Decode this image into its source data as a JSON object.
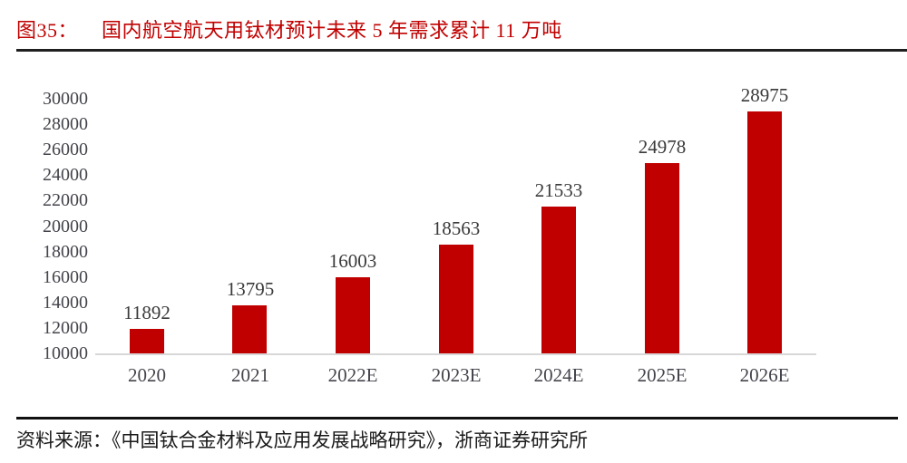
{
  "figure": {
    "label": "图35：",
    "title": "国内航空航天用钛材预计未来 5 年需求累计 11 万吨"
  },
  "source_note": "资料来源：《中国钛合金材料及应用发展战略研究》，浙商证券研究所",
  "colors": {
    "accent_red": "#c00000",
    "bar": "#c00000",
    "axis_text": "#44444c",
    "value_text": "#3a3a3a",
    "baseline": "#d8d8d8",
    "rule_dark": "#1f1f1f"
  },
  "chart_data": {
    "type": "bar",
    "title": "国内航空航天用钛材预计未来 5 年需求累计 11 万吨",
    "categories": [
      "2020",
      "2021",
      "2022E",
      "2023E",
      "2024E",
      "2025E",
      "2026E"
    ],
    "values": [
      11892,
      13795,
      16003,
      18563,
      21533,
      24978,
      28975
    ],
    "xlabel": "",
    "ylabel": "",
    "ylim": [
      10000,
      30000
    ],
    "yticks": [
      10000,
      12000,
      14000,
      16000,
      18000,
      20000,
      22000,
      24000,
      26000,
      28000,
      30000
    ],
    "grid": false,
    "legend": "none",
    "data_labels_shown": true,
    "bar_color": "#c00000"
  }
}
